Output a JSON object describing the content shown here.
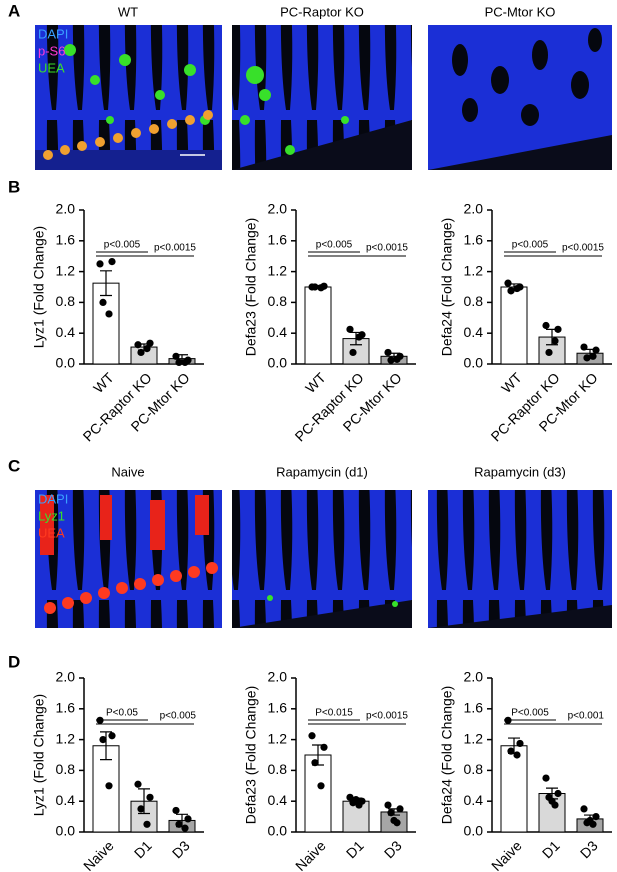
{
  "panels": [
    {
      "letter": "A",
      "titles": [
        "WT",
        "PC-Raptor KO",
        "PC-Mtor KO"
      ],
      "stain_labels": [
        "DAPI",
        "p-S6",
        "UEA"
      ]
    },
    {
      "letter": "B"
    },
    {
      "letter": "C",
      "titles": [
        "Naive",
        "Rapamycin (d1)",
        "Rapamycin (d3)"
      ],
      "stain_labels": [
        "DAPI",
        "Lyz1",
        "UEA"
      ]
    },
    {
      "letter": "D"
    }
  ],
  "chart_data": [
    {
      "type": "bar",
      "ylabel": "Lyz1  (Fold Change)",
      "categories": [
        "WT",
        "PC-Raptor KO",
        "PC-Mtor KO"
      ],
      "colors": [
        "#ffffff",
        "#d9d9d9",
        "#a6a6a6"
      ],
      "values": [
        1.05,
        0.22,
        0.07
      ],
      "errors": [
        0.16,
        0.04,
        0.05
      ],
      "points": [
        [
          1.3,
          1.33,
          0.8,
          0.65
        ],
        [
          0.25,
          0.27,
          0.15,
          0.2
        ],
        [
          0.1,
          0.05,
          0.02,
          0.02
        ]
      ],
      "annotations": [
        "p<0.005",
        "p<0.0015"
      ],
      "ylim": [
        0,
        2
      ],
      "yticks": [
        {
          "value": 0,
          "label": "0.0"
        },
        0.4,
        0.8,
        1.2,
        1.6,
        {
          "value": 2,
          "label": "2.0"
        }
      ]
    },
    {
      "type": "bar",
      "ylabel": "Defa23  (Fold Change)",
      "categories": [
        "WT",
        "PC-Raptor KO",
        "PC-Mtor KO"
      ],
      "colors": [
        "#ffffff",
        "#d9d9d9",
        "#a6a6a6"
      ],
      "values": [
        1.0,
        0.33,
        0.1
      ],
      "errors": [
        0.02,
        0.08,
        0.04
      ],
      "points": [
        [
          1.0,
          1.01,
          1.0,
          0.99
        ],
        [
          0.45,
          0.38,
          0.15,
          0.35
        ],
        [
          0.15,
          0.1,
          0.05,
          0.06
        ]
      ],
      "annotations": [
        "p<0.005",
        "p<0.0015"
      ],
      "ylim": [
        0,
        2
      ],
      "yticks": [
        {
          "value": 0,
          "label": "0.0"
        },
        0.4,
        0.8,
        1.2,
        1.6,
        {
          "value": 2,
          "label": "2.0"
        }
      ]
    },
    {
      "type": "bar",
      "ylabel": "Defa24  (Fold Change)",
      "categories": [
        "WT",
        "PC-Raptor KO",
        "PC-Mtor KO"
      ],
      "colors": [
        "#ffffff",
        "#d9d9d9",
        "#a6a6a6"
      ],
      "values": [
        1.0,
        0.35,
        0.14
      ],
      "errors": [
        0.04,
        0.1,
        0.05
      ],
      "points": [
        [
          1.05,
          1.0,
          0.95,
          0.98
        ],
        [
          0.5,
          0.45,
          0.15,
          0.3
        ],
        [
          0.22,
          0.18,
          0.08,
          0.1
        ]
      ],
      "annotations": [
        "p<0.005",
        "p<0.0015"
      ],
      "ylim": [
        0,
        2
      ],
      "yticks": [
        {
          "value": 0,
          "label": "0.0"
        },
        0.4,
        0.8,
        1.2,
        1.6,
        {
          "value": 2,
          "label": "2.0"
        }
      ]
    },
    {
      "type": "bar",
      "ylabel": "Lyz1  (Fold Change)",
      "categories": [
        "Naive",
        "D1",
        "D3"
      ],
      "colors": [
        "#ffffff",
        "#d9d9d9",
        "#a6a6a6"
      ],
      "values": [
        1.12,
        0.4,
        0.15
      ],
      "errors": [
        0.18,
        0.16,
        0.08
      ],
      "points": [
        [
          1.45,
          1.25,
          1.2,
          0.6
        ],
        [
          0.62,
          0.45,
          0.3,
          0.1
        ],
        [
          0.28,
          0.17,
          0.1,
          0.05
        ]
      ],
      "annotations": [
        "P<0.05",
        "p<0.005"
      ],
      "ylim": [
        0,
        2
      ],
      "yticks": [
        {
          "value": 0,
          "label": "0.0"
        },
        0.4,
        0.8,
        1.2,
        1.6,
        {
          "value": 2,
          "label": "2.0"
        }
      ]
    },
    {
      "type": "bar",
      "ylabel": "Defa23 (Fold Change)",
      "categories": [
        "Naive",
        "D1",
        "D3"
      ],
      "colors": [
        "#ffffff",
        "#d9d9d9",
        "#a6a6a6"
      ],
      "values": [
        1.0,
        0.4,
        0.26
      ],
      "errors": [
        0.13,
        0.04,
        0.04
      ],
      "points": [
        [
          1.25,
          1.1,
          0.9,
          0.6
        ],
        [
          0.45,
          0.4,
          0.38,
          0.35,
          0.42
        ],
        [
          0.35,
          0.3,
          0.25,
          0.12,
          0.15
        ]
      ],
      "annotations": [
        "P<0.015",
        "p<0.0015"
      ],
      "ylim": [
        0,
        2
      ],
      "yticks": [
        {
          "value": 0,
          "label": "0.0"
        },
        0.4,
        0.8,
        1.2,
        1.6,
        {
          "value": 2,
          "label": "2.0"
        }
      ]
    },
    {
      "type": "bar",
      "ylabel": "Defa24 (Fold Change)",
      "categories": [
        "Naive",
        "D1",
        "D3"
      ],
      "colors": [
        "#ffffff",
        "#d9d9d9",
        "#a6a6a6"
      ],
      "values": [
        1.12,
        0.5,
        0.17
      ],
      "errors": [
        0.1,
        0.07,
        0.05
      ],
      "points": [
        [
          1.45,
          1.15,
          1.05,
          1.0
        ],
        [
          0.7,
          0.5,
          0.45,
          0.35,
          0.4
        ],
        [
          0.3,
          0.2,
          0.12,
          0.1,
          0.15
        ]
      ],
      "annotations": [
        "P<0.005",
        "p<0.001"
      ],
      "ylim": [
        0,
        2
      ],
      "yticks": [
        {
          "value": 0,
          "label": "0.0"
        },
        0.4,
        0.8,
        1.2,
        1.6,
        {
          "value": 2,
          "label": "2.0"
        }
      ]
    }
  ]
}
